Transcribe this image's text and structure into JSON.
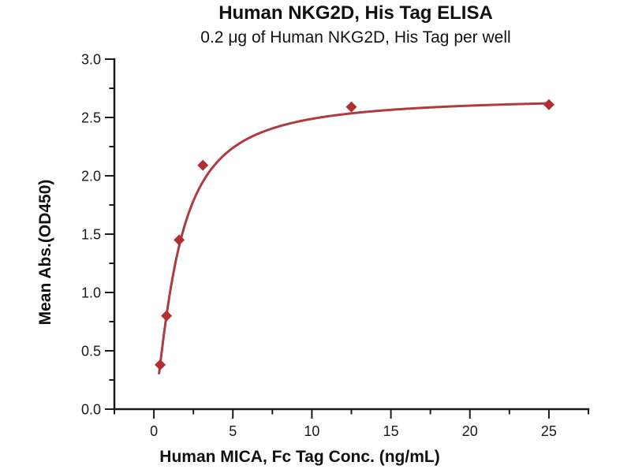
{
  "chart_data": {
    "type": "scatter",
    "title": "Human NKG2D, His Tag ELISA",
    "subtitle": "0.2 μg of Human NKG2D, His Tag per well",
    "xlabel": "Human MICA, Fc Tag Conc. (ng/mL)",
    "ylabel": "Mean Abs.(OD450)",
    "xlim": [
      -2.5,
      27.5
    ],
    "ylim": [
      0,
      3
    ],
    "xticks": [
      0,
      5,
      10,
      15,
      20,
      25
    ],
    "xtick_labels": [
      "0",
      "5",
      "10",
      "15",
      "20",
      "25"
    ],
    "x_minor_step": 2.5,
    "yticks": [
      0,
      0.5,
      1,
      1.5,
      2,
      2.5,
      3
    ],
    "ytick_labels": [
      "0.0",
      "0.5",
      "1.0",
      "1.5",
      "2.0",
      "2.5",
      "3.0"
    ],
    "y_minor_step": 0.25,
    "grid": false,
    "legend": "none",
    "background": "#ffffff",
    "text_color": "#1a1a1a",
    "series": [
      {
        "name": "Human NKG2D, His Tag",
        "marker": "diamond",
        "marker_color": "#B02F35",
        "line_color": "#AE3B3F",
        "points": [
          {
            "x": 0.4,
            "y": 0.38
          },
          {
            "x": 0.8,
            "y": 0.8
          },
          {
            "x": 1.6,
            "y": 1.45
          },
          {
            "x": 3.1,
            "y": 2.09
          },
          {
            "x": 12.5,
            "y": 2.59
          },
          {
            "x": 25,
            "y": 2.61
          }
        ],
        "fit_curve": {
          "model": "hill",
          "bmax": 2.68,
          "ec50": 1.5,
          "hill": 1.35,
          "x_start": 0.33,
          "x_end": 25
        }
      }
    ]
  }
}
